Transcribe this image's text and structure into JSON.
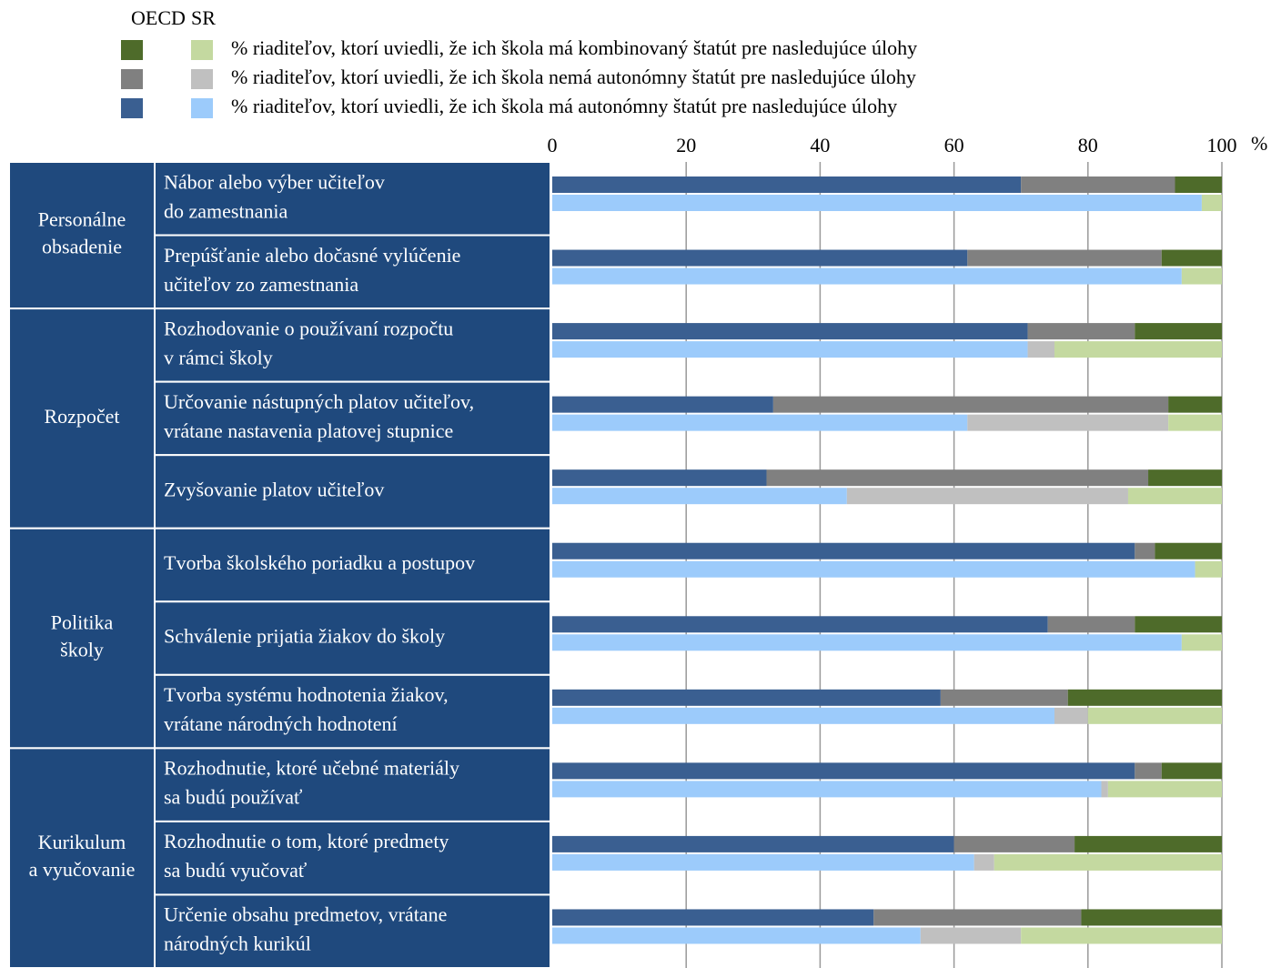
{
  "chart_data": {
    "type": "stacked-bar-horizontal",
    "bar_groups": [
      "OECD",
      "SR"
    ],
    "groups": [
      {
        "label": [
          "Personálne",
          "obsadenie"
        ],
        "tasks": [
          [
            "Nábor alebo výber učiteľov",
            "do zamestnania"
          ],
          [
            "Prepúšťanie alebo dočasné vylúčenie",
            "učiteľov zo zamestnania"
          ]
        ]
      },
      {
        "label": [
          "Rozpočet"
        ],
        "tasks": [
          [
            "Rozhodovanie o používaní rozpočtu",
            "v rámci školy"
          ],
          [
            "Určovanie nástupných platov učiteľov,",
            "vrátane nastavenia platovej stupnice"
          ],
          [
            "Zvyšovanie platov učiteľov"
          ]
        ]
      },
      {
        "label": [
          "Politika",
          "školy"
        ],
        "tasks": [
          [
            "Tvorba školského poriadku a postupov"
          ],
          [
            "Schválenie prijatia žiakov do školy"
          ],
          [
            "Tvorba systému hodnotenia žiakov,",
            "vrátane národných hodnotení"
          ]
        ]
      },
      {
        "label": [
          "Kurikulum",
          "a vyučovanie"
        ],
        "tasks": [
          [
            "Rozhodnutie, ktoré učebné materiály",
            "sa budú používať"
          ],
          [
            "Rozhodnutie o tom, ktoré predmety",
            "sa budú vyučovať"
          ],
          [
            "Určenie obsahu predmetov, vrátane",
            "národných kurikúl"
          ]
        ]
      }
    ],
    "series": [
      {
        "name": "% riaditeľov, ktorí uviedli, že ich škola má autonómny štatút pre nasledujúce úlohy",
        "color": {
          "OECD": "#3a5f91",
          "SR": "#9ccbfb"
        },
        "values": {
          "OECD": [
            70,
            62,
            71,
            33,
            32,
            87,
            74,
            58,
            87,
            60,
            48
          ],
          "SR": [
            97,
            94,
            71,
            62,
            44,
            96,
            94,
            75,
            82,
            63,
            55
          ]
        }
      },
      {
        "name": "% riaditeľov, ktorí uviedli, že ich škola nemá autonómny štatút pre nasledujúce úlohy",
        "color": {
          "OECD": "#808080",
          "SR": "#c0c0c0"
        },
        "values": {
          "OECD": [
            23,
            29,
            16,
            59,
            57,
            3,
            13,
            19,
            4,
            18,
            31
          ],
          "SR": [
            0,
            0,
            4,
            30,
            42,
            0,
            0,
            5,
            1,
            3,
            15
          ]
        }
      },
      {
        "name": "% riaditeľov, ktorí uviedli, že ich škola má kombinovaný štatút pre nasledujúce úlohy",
        "color": {
          "OECD": "#4e6b2a",
          "SR": "#c4d9a0"
        },
        "values": {
          "OECD": [
            7,
            9,
            13,
            8,
            11,
            10,
            13,
            23,
            9,
            22,
            21
          ],
          "SR": [
            3,
            6,
            25,
            8,
            14,
            4,
            6,
            20,
            17,
            34,
            30
          ]
        }
      }
    ],
    "xlim": [
      0,
      100
    ],
    "xticks": [
      0,
      20,
      40,
      60,
      80,
      100
    ],
    "x_unit": "%",
    "grid": true
  }
}
